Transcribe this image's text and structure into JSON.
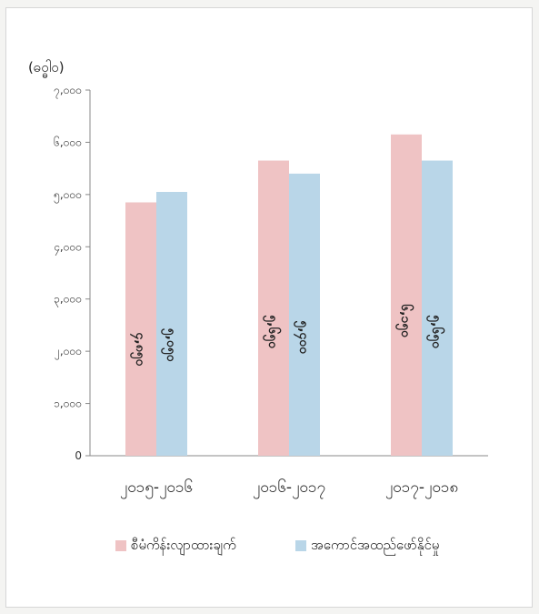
{
  "chart_data": {
    "type": "bar",
    "unit_label": "(ဓဝ္ဓါဝ)",
    "categories": [
      "၂၀၁၅-၂၀၁၆",
      "၂၀၁၆-၂၀၁၇",
      "၂၀၁၇-၂၀၁၈"
    ],
    "y_tick_labels": [
      "0",
      "၁,၀၀၀",
      "၂,၀၀၀",
      "၃,၀၀၀",
      "၄,၀၀၀",
      "၅,၀၀၀",
      "၆,၀၀၀",
      "၇,၀၀၀"
    ],
    "ylim": [
      0,
      7000
    ],
    "grid": false,
    "legend_position": "bottom",
    "series": [
      {
        "name": "စီမံကိန်းလျာထားချက်",
        "color": "#efc3c4",
        "values": [
          4850,
          5650,
          6150
        ],
        "labels": [
          "၄,၈၅၀",
          "၅,၆၅၀",
          "၆,၁၅၀"
        ]
      },
      {
        "name": "အကောင်အထည်ဖော်နိုင်မှု",
        "color": "#b9d6e8",
        "values": [
          5050,
          5400,
          5650
        ],
        "labels": [
          "၅,၀၅၀",
          "၅,၄၀၀",
          "၅,၆၅၀"
        ]
      }
    ]
  }
}
